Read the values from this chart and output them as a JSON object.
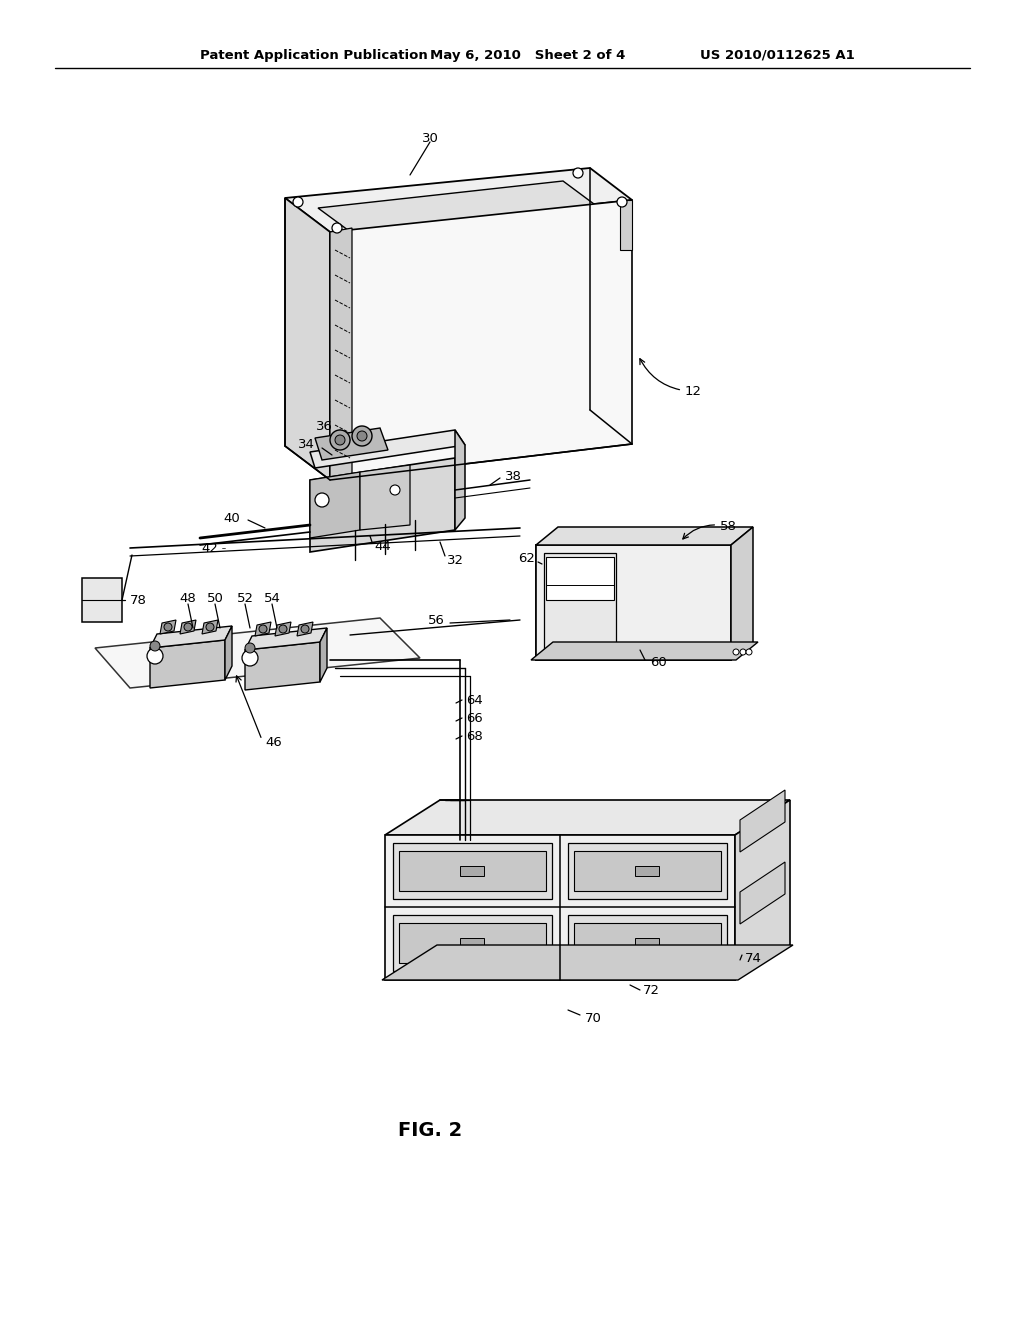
{
  "bg_color": "#ffffff",
  "header_left": "Patent Application Publication",
  "header_mid": "May 6, 2010   Sheet 2 of 4",
  "header_right": "US 2010/0112625 A1",
  "fig_label": "FIG. 2"
}
